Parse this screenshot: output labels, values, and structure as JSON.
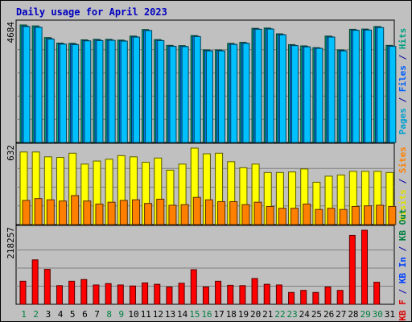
{
  "chart_data": {
    "type": "bar",
    "title": "Daily usage for April 2023",
    "categories": [
      "1",
      "2",
      "3",
      "4",
      "5",
      "6",
      "7",
      "8",
      "9",
      "10",
      "11",
      "12",
      "13",
      "14",
      "15",
      "16",
      "17",
      "18",
      "19",
      "20",
      "21",
      "22",
      "23",
      "24",
      "25",
      "26",
      "27",
      "28",
      "29",
      "30",
      "31"
    ],
    "weekend_days": [
      "1",
      "2",
      "8",
      "9",
      "15",
      "16",
      "22",
      "23",
      "29",
      "30"
    ],
    "panels": [
      {
        "max_label": "4684",
        "ylim": [
          0,
          4684
        ],
        "axis_labels": [
          {
            "text": "Pages",
            "color": "#00a0d0"
          },
          {
            "text": " / ",
            "color": "#0000a0"
          },
          {
            "text": "Files",
            "color": "#0060ff"
          },
          {
            "text": " / ",
            "color": "#0000a0"
          },
          {
            "text": "Hits",
            "color": "#00a080"
          }
        ],
        "series": [
          {
            "name": "Hits",
            "color": "#00b080",
            "values": [
              4684,
              4647,
              4180,
              3960,
              3950,
              4090,
              4110,
              4110,
              4080,
              4240,
              4500,
              4100,
              3870,
              3860,
              4260,
              3690,
              3690,
              3950,
              3990,
              4550,
              4560,
              4330,
              3900,
              3850,
              3780,
              4240,
              3690,
              4510,
              4520,
              4620,
              3870
            ]
          },
          {
            "name": "Files",
            "color": "#0080ff",
            "values": [
              4640,
              4600,
              4140,
              3930,
              3920,
              4060,
              4080,
              4080,
              4050,
              4210,
              4470,
              4070,
              3840,
              3830,
              4230,
              3660,
              3660,
              3920,
              3960,
              4520,
              4530,
              4300,
              3870,
              3820,
              3760,
              4210,
              3660,
              4480,
              4490,
              4590,
              3840
            ]
          },
          {
            "name": "Pages",
            "color": "#00c0ff",
            "values": [
              4620,
              4590,
              4120,
              3920,
              3900,
              4050,
              4060,
              4070,
              4040,
              4200,
              4460,
              4060,
              3830,
              3820,
              4220,
              3650,
              3650,
              3910,
              3950,
              4510,
              4520,
              4290,
              3860,
              3810,
              3750,
              4200,
              3650,
              4470,
              4480,
              4580,
              3830
            ]
          }
        ]
      },
      {
        "max_label": "632",
        "ylim": [
          0,
          632
        ],
        "axis_labels": [
          {
            "text": "Visits",
            "color": "#e0e000"
          },
          {
            "text": " / ",
            "color": "#0000a0"
          },
          {
            "text": "Sites",
            "color": "#ff8000"
          }
        ],
        "series": [
          {
            "name": "Visits",
            "color": "#ffff00",
            "values": [
              600,
              600,
              560,
              555,
              590,
              500,
              525,
              540,
              570,
              560,
              515,
              550,
              450,
              500,
              632,
              585,
              590,
              520,
              470,
              500,
              430,
              430,
              435,
              460,
              350,
              400,
              410,
              440,
              440,
              440,
              430
            ]
          },
          {
            "name": "Sites",
            "color": "#ff8000",
            "values": [
              200,
              215,
              205,
              195,
              240,
              195,
              170,
              185,
              200,
              205,
              175,
              210,
              160,
              165,
              225,
              205,
              190,
              190,
              165,
              185,
              150,
              135,
              135,
              170,
              125,
              135,
              125,
              150,
              155,
              160,
              150
            ]
          }
        ]
      },
      {
        "max_label": "218257",
        "ylim": [
          0,
          218257
        ],
        "axis_labels": [
          {
            "text": "KB F",
            "color": "#e00000"
          },
          {
            "text": " / ",
            "color": "#0000a0"
          },
          {
            "text": "KB In",
            "color": "#0040ff"
          },
          {
            "text": " / ",
            "color": "#0000a0"
          },
          {
            "text": "KB Out",
            "color": "#008040"
          }
        ],
        "series": [
          {
            "name": "KB F",
            "color": "#ff0000",
            "values": [
              68000,
              131000,
              103000,
              55000,
              68000,
              73000,
              57000,
              61000,
              57000,
              54000,
              63000,
              59000,
              51000,
              62000,
              102000,
              51000,
              68000,
              56000,
              55000,
              76000,
              59000,
              57000,
              35000,
              41000,
              35000,
              51000,
              41000,
              203000,
              218257,
              65000,
              0
            ]
          }
        ]
      }
    ]
  }
}
